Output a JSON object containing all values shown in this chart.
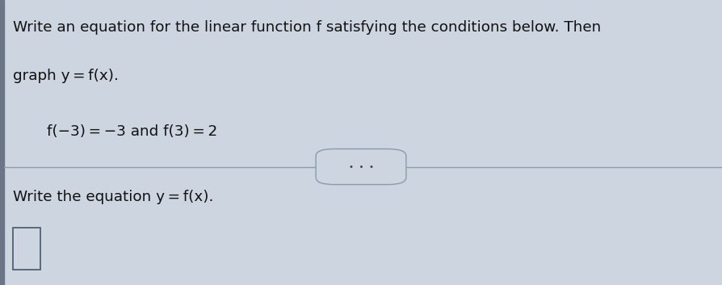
{
  "bg_color": "#cdd5e0",
  "text_color": "#111111",
  "title_line1": "Write an equation for the linear function f satisfying the conditions below. Then",
  "title_line2": "graph y = f(x).",
  "condition_text": "f(−3) = −3 and f(3) = 2",
  "bottom_instruction": "Write the equation y = f(x).",
  "dots_text": "•  •  •",
  "left_bar_color": "#6b7585",
  "figsize": [
    8.94,
    3.53
  ],
  "dpi": 100,
  "divider_color": "#9099a8",
  "box_edge_color": "#5a6a7a"
}
